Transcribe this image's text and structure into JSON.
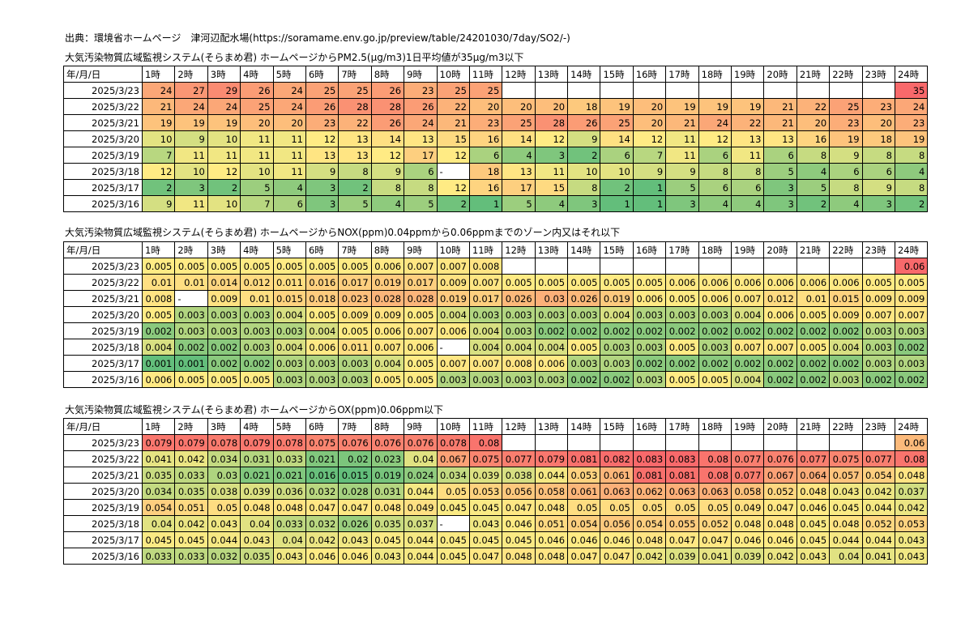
{
  "source_line": "出典：環境省ホームページ　津河辺配水場(https://soramame.env.go.jp/preview/table/24201030/7day/SO2/-)",
  "tables": [
    {
      "title": "大気汚染物質広域監視システム(そらまめ君) ホームページからPM2.5(μg/m3)1日平均値が35μg/m3以下",
      "header": [
        "年/月/日",
        "1時",
        "2時",
        "3時",
        "4時",
        "5時",
        "6時",
        "7時",
        "8時",
        "9時",
        "10時",
        "11時",
        "12時",
        "13時",
        "14時",
        "15時",
        "16時",
        "17時",
        "18時",
        "19時",
        "20時",
        "21時",
        "22時",
        "23時",
        "24時"
      ],
      "rows": [
        {
          "date": "2025/3/23",
          "values": [
            "24",
            "27",
            "29",
            "26",
            "24",
            "25",
            "25",
            "26",
            "23",
            "25",
            "25",
            "",
            "",
            "",
            "",
            "",
            "",
            "",
            "",
            "",
            "",
            "",
            "",
            "35"
          ]
        },
        {
          "date": "2025/3/22",
          "values": [
            "21",
            "24",
            "24",
            "25",
            "24",
            "26",
            "28",
            "28",
            "26",
            "22",
            "20",
            "20",
            "20",
            "18",
            "19",
            "20",
            "19",
            "19",
            "19",
            "21",
            "22",
            "25",
            "23",
            "24"
          ]
        },
        {
          "date": "2025/3/21",
          "values": [
            "19",
            "19",
            "19",
            "20",
            "20",
            "23",
            "22",
            "26",
            "24",
            "21",
            "23",
            "25",
            "28",
            "26",
            "25",
            "20",
            "21",
            "24",
            "22",
            "21",
            "20",
            "23",
            "20",
            "23"
          ]
        },
        {
          "date": "2025/3/20",
          "values": [
            "10",
            "9",
            "10",
            "11",
            "11",
            "12",
            "13",
            "14",
            "13",
            "15",
            "16",
            "14",
            "12",
            "9",
            "14",
            "12",
            "11",
            "12",
            "13",
            "13",
            "16",
            "19",
            "18",
            "19"
          ]
        },
        {
          "date": "2025/3/19",
          "values": [
            "7",
            "11",
            "11",
            "11",
            "11",
            "13",
            "13",
            "12",
            "17",
            "12",
            "6",
            "4",
            "3",
            "2",
            "6",
            "7",
            "11",
            "6",
            "11",
            "6",
            "8",
            "9",
            "8",
            "8"
          ]
        },
        {
          "date": "2025/3/18",
          "values": [
            "12",
            "10",
            "12",
            "10",
            "11",
            "9",
            "8",
            "9",
            "6",
            "-",
            "18",
            "13",
            "11",
            "10",
            "10",
            "9",
            "9",
            "8",
            "8",
            "5",
            "4",
            "6",
            "6",
            "4"
          ]
        },
        {
          "date": "2025/3/17",
          "values": [
            "2",
            "3",
            "2",
            "5",
            "4",
            "3",
            "2",
            "8",
            "8",
            "12",
            "16",
            "17",
            "15",
            "8",
            "2",
            "1",
            "5",
            "6",
            "6",
            "3",
            "5",
            "8",
            "9",
            "8"
          ]
        },
        {
          "date": "2025/3/16",
          "values": [
            "9",
            "11",
            "10",
            "7",
            "6",
            "3",
            "5",
            "4",
            "5",
            "2",
            "1",
            "5",
            "4",
            "3",
            "1",
            "1",
            "3",
            "4",
            "4",
            "3",
            "2",
            "4",
            "3",
            "2"
          ]
        }
      ]
    },
    {
      "title": "大気汚染物質広域監視システム(そらまめ君) ホームページからNOX(ppm)0.04ppmから0.06ppmまでのゾーン内又はそれ以下",
      "header": [
        "年/月/日",
        "1時",
        "2時",
        "3時",
        "4時",
        "5時",
        "6時",
        "7時",
        "8時",
        "9時",
        "10時",
        "11時",
        "12時",
        "13時",
        "14時",
        "15時",
        "16時",
        "17時",
        "18時",
        "19時",
        "20時",
        "21時",
        "22時",
        "23時",
        "24時"
      ],
      "rows": [
        {
          "date": "2025/3/23",
          "values": [
            "0.005",
            "0.005",
            "0.005",
            "0.005",
            "0.005",
            "0.005",
            "0.005",
            "0.006",
            "0.007",
            "0.007",
            "0.008",
            "",
            "",
            "",
            "",
            "",
            "",
            "",
            "",
            "",
            "",
            "",
            "",
            "0.06"
          ]
        },
        {
          "date": "2025/3/22",
          "values": [
            "0.01",
            "0.01",
            "0.014",
            "0.012",
            "0.011",
            "0.016",
            "0.017",
            "0.019",
            "0.017",
            "0.009",
            "0.007",
            "0.005",
            "0.005",
            "0.005",
            "0.005",
            "0.005",
            "0.006",
            "0.006",
            "0.006",
            "0.006",
            "0.006",
            "0.006",
            "0.005",
            "0.005"
          ]
        },
        {
          "date": "2025/3/21",
          "values": [
            "0.008",
            "-",
            "0.009",
            "0.01",
            "0.015",
            "0.018",
            "0.023",
            "0.028",
            "0.028",
            "0.019",
            "0.017",
            "0.026",
            "0.03",
            "0.026",
            "0.019",
            "0.006",
            "0.005",
            "0.006",
            "0.007",
            "0.012",
            "0.01",
            "0.015",
            "0.009",
            "0.009"
          ]
        },
        {
          "date": "2025/3/20",
          "values": [
            "0.005",
            "0.003",
            "0.003",
            "0.003",
            "0.004",
            "0.005",
            "0.009",
            "0.009",
            "0.005",
            "0.004",
            "0.003",
            "0.003",
            "0.003",
            "0.003",
            "0.004",
            "0.003",
            "0.003",
            "0.003",
            "0.004",
            "0.006",
            "0.005",
            "0.009",
            "0.007",
            "0.007"
          ]
        },
        {
          "date": "2025/3/19",
          "values": [
            "0.002",
            "0.003",
            "0.003",
            "0.003",
            "0.003",
            "0.004",
            "0.005",
            "0.006",
            "0.007",
            "0.006",
            "0.004",
            "0.003",
            "0.002",
            "0.002",
            "0.002",
            "0.002",
            "0.002",
            "0.002",
            "0.002",
            "0.002",
            "0.002",
            "0.002",
            "0.003",
            "0.003"
          ]
        },
        {
          "date": "2025/3/18",
          "values": [
            "0.004",
            "0.002",
            "0.002",
            "0.003",
            "0.004",
            "0.006",
            "0.011",
            "0.007",
            "0.006",
            "-",
            "0.004",
            "0.004",
            "0.004",
            "0.005",
            "0.003",
            "0.003",
            "0.005",
            "0.003",
            "0.007",
            "0.007",
            "0.005",
            "0.004",
            "0.003",
            "0.002"
          ]
        },
        {
          "date": "2025/3/17",
          "values": [
            "0.001",
            "0.001",
            "0.002",
            "0.002",
            "0.003",
            "0.003",
            "0.003",
            "0.004",
            "0.005",
            "0.007",
            "0.007",
            "0.008",
            "0.006",
            "0.003",
            "0.003",
            "0.002",
            "0.002",
            "0.002",
            "0.002",
            "0.002",
            "0.002",
            "0.002",
            "0.003",
            "0.003"
          ]
        },
        {
          "date": "2025/3/16",
          "values": [
            "0.006",
            "0.005",
            "0.005",
            "0.005",
            "0.003",
            "0.003",
            "0.003",
            "0.005",
            "0.005",
            "0.003",
            "0.003",
            "0.003",
            "0.003",
            "0.002",
            "0.002",
            "0.003",
            "0.005",
            "0.005",
            "0.004",
            "0.002",
            "0.002",
            "0.003",
            "0.002",
            "0.002"
          ]
        }
      ]
    },
    {
      "title": "大気汚染物質広域監視システム(そらまめ君) ホームページからOX(ppm)0.06ppm以下",
      "header": [
        "年/月/日",
        "1時",
        "2時",
        "3時",
        "4時",
        "5時",
        "6時",
        "7時",
        "8時",
        "9時",
        "10時",
        "11時",
        "12時",
        "13時",
        "14時",
        "15時",
        "16時",
        "17時",
        "18時",
        "19時",
        "20時",
        "21時",
        "22時",
        "23時",
        "24時"
      ],
      "rows": [
        {
          "date": "2025/3/23",
          "values": [
            "0.079",
            "0.079",
            "0.078",
            "0.079",
            "0.078",
            "0.075",
            "0.076",
            "0.076",
            "0.076",
            "0.078",
            "0.08",
            "",
            "",
            "",
            "",
            "",
            "",
            "",
            "",
            "",
            "",
            "",
            "",
            "0.06"
          ]
        },
        {
          "date": "2025/3/22",
          "values": [
            "0.041",
            "0.042",
            "0.034",
            "0.031",
            "0.033",
            "0.021",
            "0.02",
            "0.023",
            "0.04",
            "0.067",
            "0.075",
            "0.077",
            "0.079",
            "0.081",
            "0.082",
            "0.083",
            "0.083",
            "0.08",
            "0.077",
            "0.076",
            "0.077",
            "0.075",
            "0.077",
            "0.08"
          ]
        },
        {
          "date": "2025/3/21",
          "values": [
            "0.035",
            "0.033",
            "0.03",
            "0.021",
            "0.021",
            "0.016",
            "0.015",
            "0.019",
            "0.024",
            "0.034",
            "0.039",
            "0.038",
            "0.044",
            "0.053",
            "0.061",
            "0.081",
            "0.081",
            "0.08",
            "0.077",
            "0.067",
            "0.064",
            "0.057",
            "0.054",
            "0.048"
          ]
        },
        {
          "date": "2025/3/20",
          "values": [
            "0.034",
            "0.035",
            "0.038",
            "0.039",
            "0.036",
            "0.032",
            "0.028",
            "0.031",
            "0.044",
            "0.05",
            "0.053",
            "0.056",
            "0.058",
            "0.061",
            "0.063",
            "0.062",
            "0.063",
            "0.063",
            "0.058",
            "0.052",
            "0.048",
            "0.043",
            "0.042",
            "0.037"
          ]
        },
        {
          "date": "2025/3/19",
          "values": [
            "0.054",
            "0.051",
            "0.05",
            "0.048",
            "0.048",
            "0.047",
            "0.047",
            "0.048",
            "0.049",
            "0.045",
            "0.045",
            "0.047",
            "0.048",
            "0.05",
            "0.05",
            "0.05",
            "0.05",
            "0.05",
            "0.049",
            "0.047",
            "0.046",
            "0.045",
            "0.044",
            "0.042"
          ]
        },
        {
          "date": "2025/3/18",
          "values": [
            "0.04",
            "0.042",
            "0.043",
            "0.04",
            "0.033",
            "0.032",
            "0.026",
            "0.035",
            "0.037",
            "-",
            "0.043",
            "0.046",
            "0.051",
            "0.054",
            "0.056",
            "0.054",
            "0.055",
            "0.052",
            "0.048",
            "0.048",
            "0.045",
            "0.048",
            "0.052",
            "0.053"
          ]
        },
        {
          "date": "2025/3/17",
          "values": [
            "0.045",
            "0.045",
            "0.044",
            "0.043",
            "0.04",
            "0.042",
            "0.043",
            "0.045",
            "0.044",
            "0.045",
            "0.045",
            "0.045",
            "0.046",
            "0.046",
            "0.046",
            "0.048",
            "0.047",
            "0.047",
            "0.046",
            "0.046",
            "0.045",
            "0.044",
            "0.044",
            "0.043"
          ]
        },
        {
          "date": "2025/3/16",
          "values": [
            "0.033",
            "0.033",
            "0.032",
            "0.035",
            "0.043",
            "0.046",
            "0.046",
            "0.043",
            "0.044",
            "0.045",
            "0.047",
            "0.048",
            "0.048",
            "0.047",
            "0.047",
            "0.042",
            "0.039",
            "0.041",
            "0.039",
            "0.042",
            "0.043",
            "0.04",
            "0.041",
            "0.043"
          ]
        }
      ]
    }
  ]
}
